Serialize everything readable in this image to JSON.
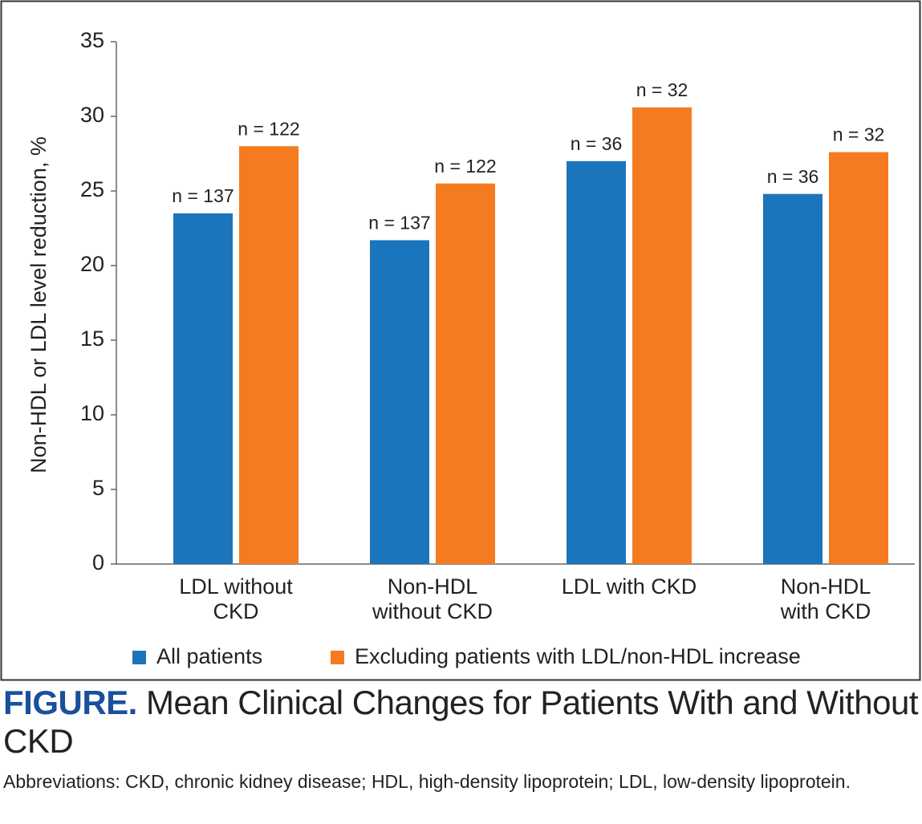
{
  "chart_data": {
    "type": "bar",
    "y_axis_label": "Non-HDL or LDL level reduction, %",
    "categories": [
      "LDL without\nCKD",
      "Non-HDL\nwithout CKD",
      "LDL with CKD",
      "Non-HDL\nwith CKD"
    ],
    "series": [
      {
        "name": "All patients",
        "color": "#1b75bc",
        "values": [
          23.5,
          21.7,
          27.0,
          24.8
        ],
        "labels": [
          "n = 137",
          "n = 137",
          "n = 36",
          "n = 36"
        ]
      },
      {
        "name": "Excluding patients with LDL/non-HDL increase",
        "color": "#f47b20",
        "values": [
          28.0,
          25.5,
          30.6,
          27.6
        ],
        "labels": [
          "n = 122",
          "n = 122",
          "n = 32",
          "n = 32"
        ]
      }
    ],
    "ylim": [
      0,
      35
    ],
    "yticks": [
      0,
      5,
      10,
      15,
      20,
      25,
      30,
      35
    ],
    "grid": false,
    "legend": "bottom"
  },
  "caption": {
    "label": "FIGURE.",
    "title": "Mean Clinical Changes for Patients With and Without CKD",
    "note": "Abbreviations: CKD, chronic kidney disease; HDL, high-density lipoprotein; LDL, low-density lipoprotein."
  }
}
